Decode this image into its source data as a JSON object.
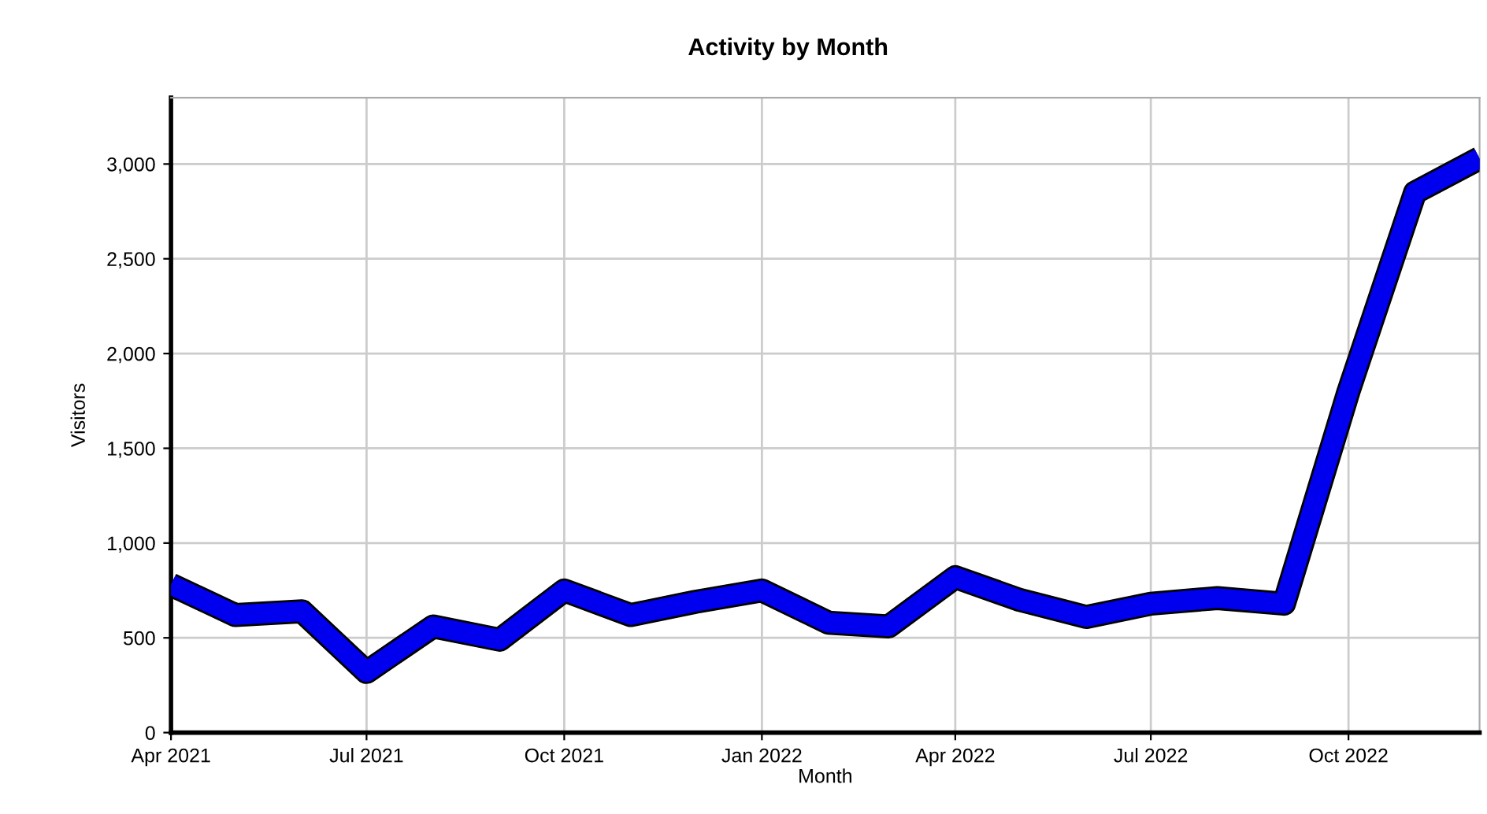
{
  "chart_data": {
    "type": "line",
    "title": "Activity by Month",
    "xlabel": "Month",
    "ylabel": "Visitors",
    "x": [
      "2021-04",
      "2021-05",
      "2021-06",
      "2021-07",
      "2021-08",
      "2021-09",
      "2021-10",
      "2021-11",
      "2021-12",
      "2022-01",
      "2022-02",
      "2022-03",
      "2022-04",
      "2022-05",
      "2022-06",
      "2022-07",
      "2022-08",
      "2022-09",
      "2022-10",
      "2022-11",
      "2022-12"
    ],
    "series": [
      {
        "color": "#0000ee",
        "values": [
          780,
          620,
          640,
          320,
          560,
          490,
          750,
          620,
          690,
          750,
          580,
          560,
          820,
          700,
          610,
          680,
          710,
          680,
          1800,
          2850,
          3030
        ]
      }
    ],
    "xlim": [
      "2021-04",
      "2022-12"
    ],
    "xticks": [
      {
        "value": "2021-04",
        "label": "Apr 2021"
      },
      {
        "value": "2021-07",
        "label": "Jul 2021"
      },
      {
        "value": "2021-10",
        "label": "Oct 2021"
      },
      {
        "value": "2022-01",
        "label": "Jan 2022"
      },
      {
        "value": "2022-04",
        "label": "Apr 2022"
      },
      {
        "value": "2022-07",
        "label": "Jul 2022"
      },
      {
        "value": "2022-10",
        "label": "Oct 2022"
      }
    ],
    "ylim": [
      0,
      3350
    ],
    "yticks": [
      {
        "value": 0,
        "label": "0"
      },
      {
        "value": 500,
        "label": "500"
      },
      {
        "value": 1000,
        "label": "1,000"
      },
      {
        "value": 1500,
        "label": "1,500"
      },
      {
        "value": 2000,
        "label": "2,000"
      },
      {
        "value": 2500,
        "label": "2,500"
      },
      {
        "value": 3000,
        "label": "3,000"
      }
    ],
    "grid": true,
    "marker": "none",
    "line_style": "solid"
  }
}
